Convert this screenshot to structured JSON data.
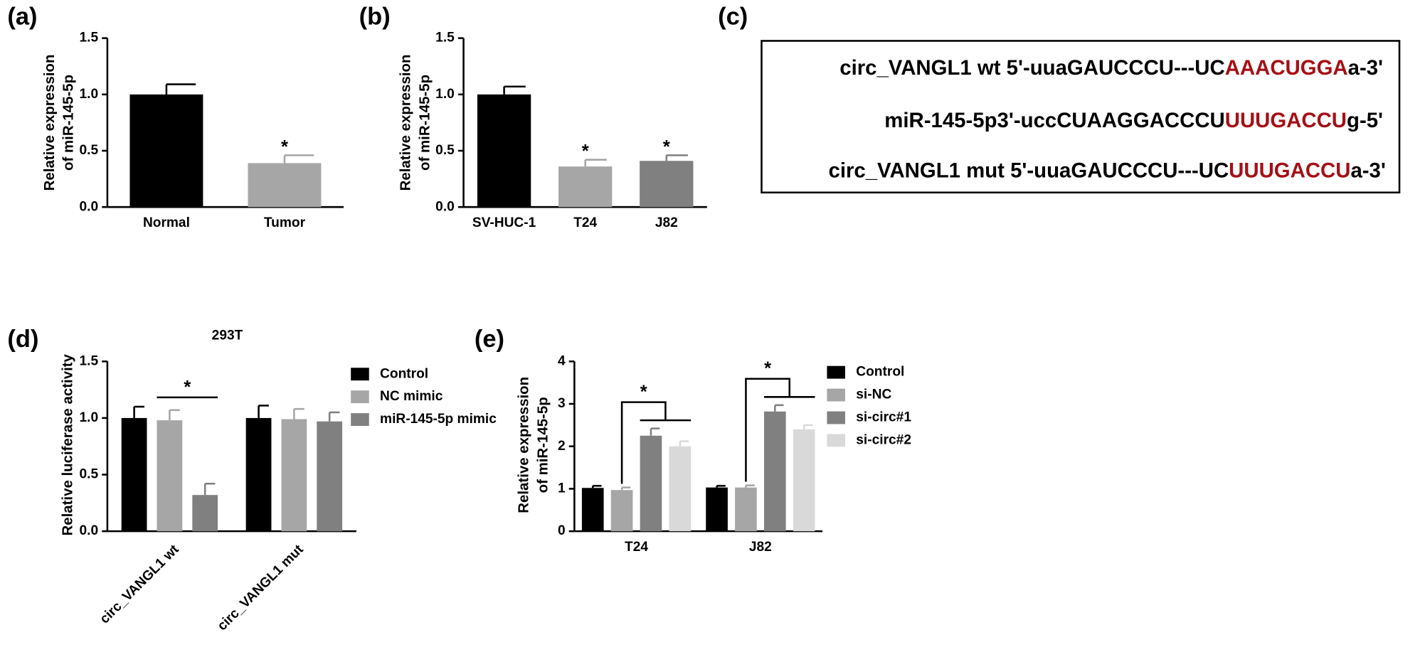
{
  "chart_data": [
    {
      "type": "bar",
      "label": "(a)",
      "ylabel": [
        "Relative expression",
        "of miR-145-5p"
      ],
      "categories": [
        "Normal",
        "Tumor"
      ],
      "values": [
        1.0,
        0.39
      ],
      "errors": [
        0.09,
        0.07
      ],
      "colors": [
        "#000000",
        "#a6a6a6"
      ],
      "significance": [
        null,
        "*"
      ],
      "ylim": [
        0,
        1.5
      ],
      "yticks": [
        {
          "value": 0,
          "label": "0.0"
        },
        0.5,
        {
          "value": 1,
          "label": "1.0"
        },
        1.5
      ]
    },
    {
      "type": "bar",
      "label": "(b)",
      "ylabel": [
        "Relative expression",
        "of miR-145-5p"
      ],
      "categories": [
        "SV-HUC-1",
        "T24",
        "J82"
      ],
      "values": [
        1.0,
        0.36,
        0.41
      ],
      "errors": [
        0.07,
        0.06,
        0.05
      ],
      "colors": [
        "#000000",
        "#a6a6a6",
        "#808080"
      ],
      "significance": [
        null,
        "*",
        "*"
      ],
      "ylim": [
        0,
        1.5
      ],
      "yticks": [
        {
          "value": 0,
          "label": "0.0"
        },
        0.5,
        {
          "value": 1,
          "label": "1.0"
        },
        1.5
      ]
    },
    {
      "type": "grouped_bar",
      "label": "(d)",
      "title": "293T",
      "ylabel": [
        "Relative luciferase activity"
      ],
      "categories": [
        "circ_VANGL1 wt",
        "circ_VANGL1 mut"
      ],
      "bracket": "line",
      "series": [
        {
          "name": "Control",
          "color": "#000000",
          "values": [
            1.0,
            1.0
          ],
          "errors": [
            0.1,
            0.11
          ]
        },
        {
          "name": "NC mimic",
          "color": "#a6a6a6",
          "values": [
            0.98,
            0.99
          ],
          "errors": [
            0.09,
            0.09
          ],
          "significance": [
            "*",
            null
          ]
        },
        {
          "name": "miR-145-5p mimic",
          "color": "#808080",
          "values": [
            0.32,
            0.97
          ],
          "errors": [
            0.1,
            0.08
          ]
        }
      ],
      "ylim": [
        0,
        1.5
      ],
      "yticks": [
        {
          "value": 0,
          "label": "0.0"
        },
        0.5,
        {
          "value": 1,
          "label": "1.0"
        },
        1.5
      ]
    },
    {
      "type": "grouped_bar",
      "label": "(e)",
      "ylabel": [
        "Relative expression",
        "of miR-145-5p"
      ],
      "categories": [
        "T24",
        "J82"
      ],
      "bracket": "step",
      "series": [
        {
          "name": "Control",
          "color": "#000000",
          "values": [
            1.02,
            1.03
          ],
          "errors": [
            0.05,
            0.04
          ]
        },
        {
          "name": "si-NC",
          "color": "#a6a6a6",
          "values": [
            0.97,
            1.03
          ],
          "errors": [
            0.06,
            0.05
          ],
          "significance": [
            "*",
            "*"
          ]
        },
        {
          "name": "si-circ#1",
          "color": "#808080",
          "values": [
            2.25,
            2.82
          ],
          "errors": [
            0.17,
            0.15
          ]
        },
        {
          "name": "si-circ#2",
          "color": "#d9d9d9",
          "values": [
            2.0,
            2.4
          ],
          "errors": [
            0.12,
            0.1
          ]
        }
      ],
      "ylim": [
        0,
        4
      ],
      "yticks": [
        0,
        1,
        2,
        3,
        4
      ]
    }
  ],
  "panel_c": {
    "label": "(c)",
    "lines": [
      {
        "prefix": "circ_VANGL1 wt 5'-uuaGAUCCCU---UC",
        "highlight": "AAACUGGA",
        "suffix": "a-3'"
      },
      {
        "prefix": "miR-145-5p3'-uccCUAAGGACCCU",
        "highlight": "UUUGACCU",
        "suffix": "g-5'"
      },
      {
        "prefix": "circ_VANGL1 mut 5'-uuaGAUCCCU---UC",
        "highlight": "UUUGACCU",
        "suffix": "a-3'"
      }
    ]
  }
}
